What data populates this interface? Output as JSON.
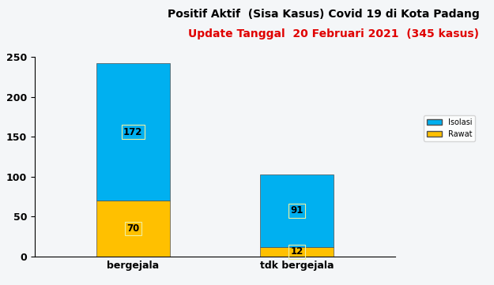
{
  "chart_data": {
    "type": "bar",
    "title": "Positif Aktif  (Sisa Kasus) Covid 19 di Kota Padang",
    "subtitle": "Update Tanggal  20 Februari 2021  (345 kasus)",
    "categories": [
      "bergejala",
      "tdk bergejala"
    ],
    "series": [
      {
        "name": "Rawat",
        "color": "#ffc000",
        "values": [
          70,
          12
        ]
      },
      {
        "name": "Isolasi",
        "color": "#00b0f0",
        "values": [
          172,
          91
        ]
      }
    ],
    "stacked": true,
    "data_labels": true,
    "legend": "center right",
    "ylim": [
      0,
      250
    ],
    "yticks": [
      0,
      50,
      100,
      150,
      200,
      250
    ]
  }
}
